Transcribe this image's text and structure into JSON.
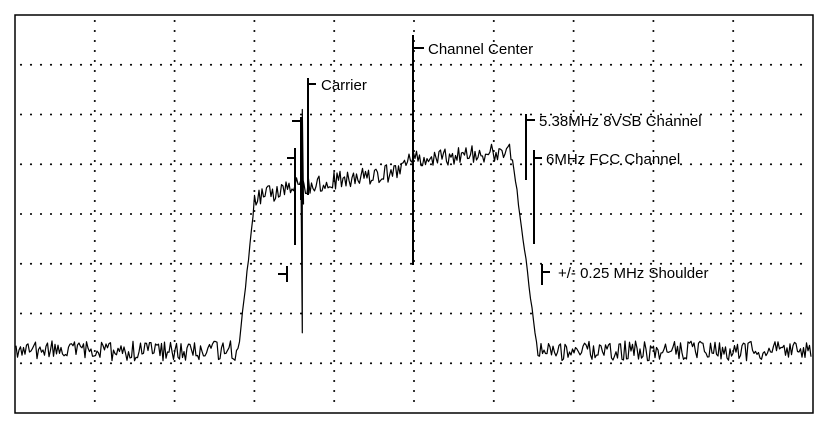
{
  "chart_data": {
    "type": "line",
    "title": "",
    "xlabel": "",
    "ylabel": "",
    "grid": "dotted",
    "divisions": {
      "x": 10,
      "y": 8
    },
    "trace": {
      "noise_floor_div": 1.25,
      "passband_left_div": 4.2,
      "passband_center_div": 5.1,
      "passband_right_div": 5.25,
      "channel_start_div": 2.85,
      "channel_end_div": 6.55
    },
    "annotations": [
      {
        "id": "carrier",
        "label": "Carrier",
        "x_div": 2.9
      },
      {
        "id": "channel-center",
        "label": "Channel Center",
        "x_div": 4.95
      },
      {
        "id": "vsb-channel",
        "label": "5.38MHz 8VSB Channel",
        "x_div": 6.35
      },
      {
        "id": "fcc-channel",
        "label": "6MHz FCC Channel",
        "x_div": 6.45
      },
      {
        "id": "shoulder",
        "label": "+/- 0.25 MHz Shoulder",
        "x_div": 6.6
      }
    ]
  }
}
